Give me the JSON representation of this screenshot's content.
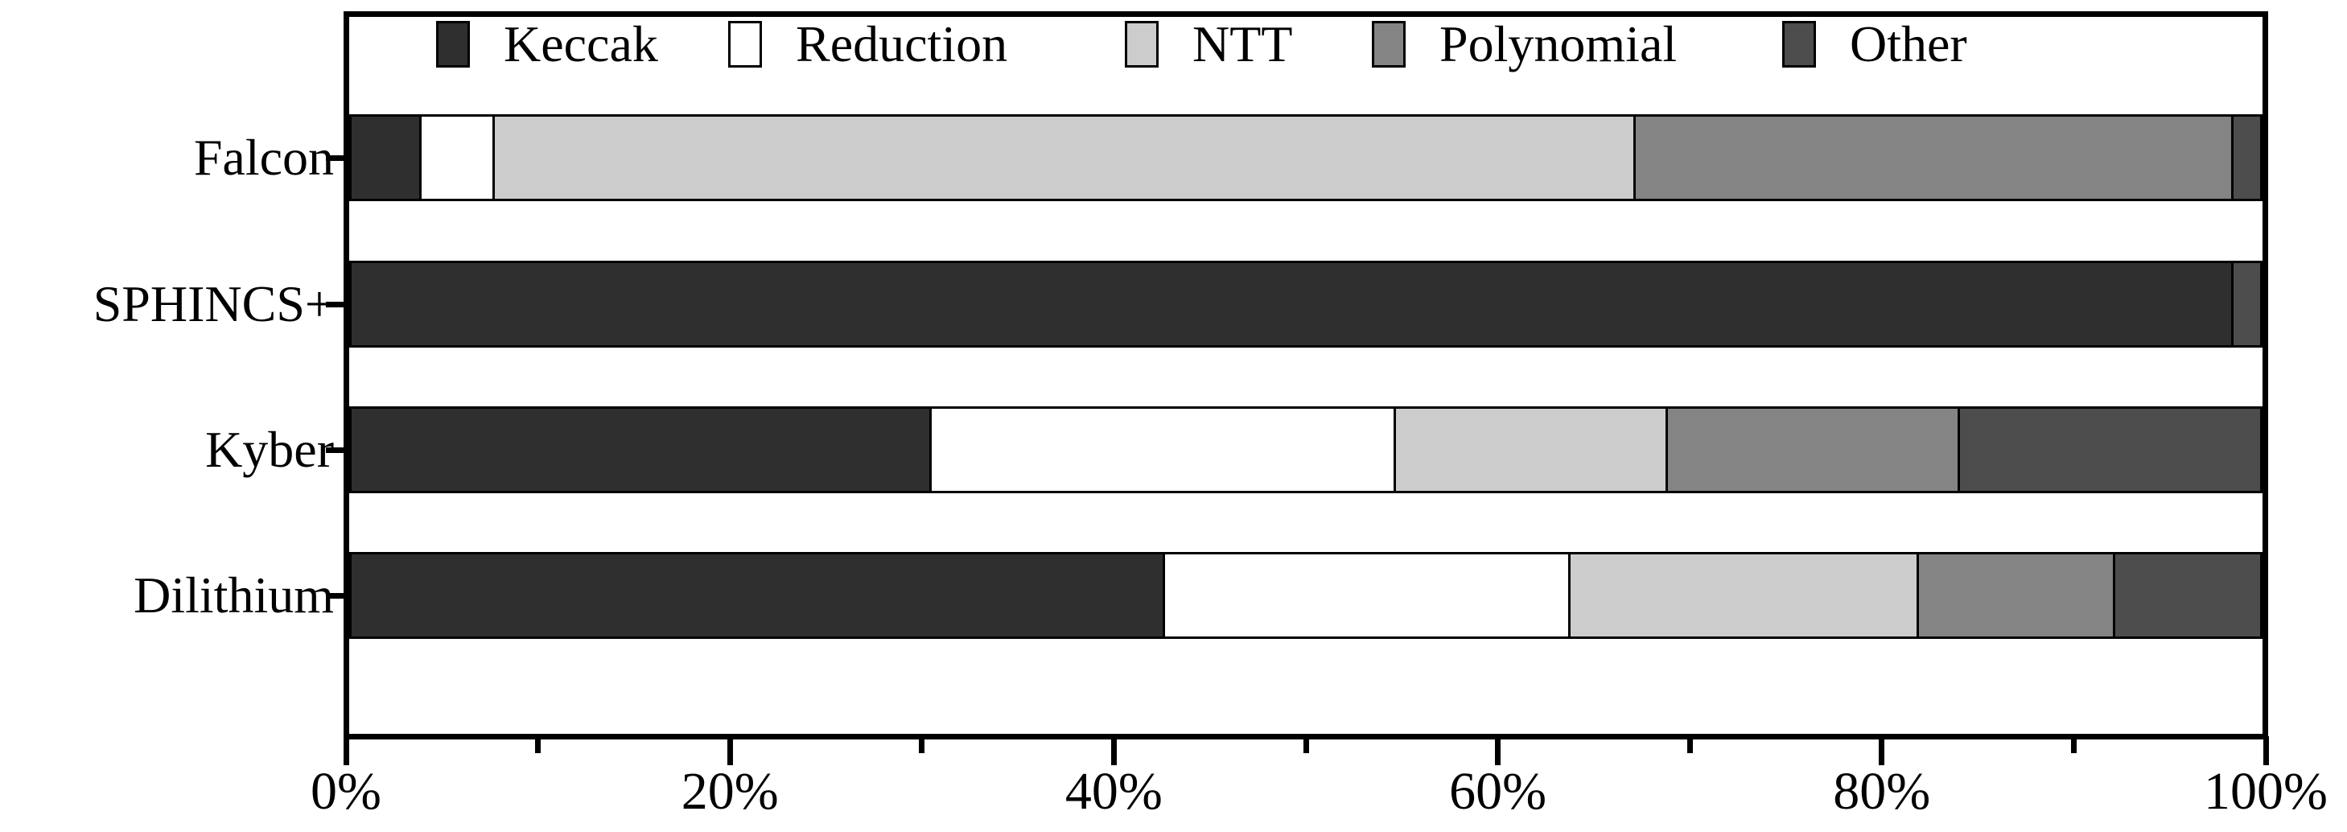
{
  "chart_data": {
    "type": "bar",
    "orientation": "horizontal",
    "stacked": true,
    "title": "",
    "xlabel": "",
    "ylabel": "",
    "xlim": [
      0,
      100
    ],
    "x_tick_labels": [
      "0%",
      "20%",
      "40%",
      "60%",
      "80%",
      "100%"
    ],
    "x_major_ticks": [
      0,
      20,
      40,
      60,
      80,
      100
    ],
    "x_minor_ticks": [
      10,
      30,
      50,
      70,
      90
    ],
    "grid": false,
    "legend_position": "top-inside",
    "categories": [
      "Falcon",
      "SPHINCS+",
      "Kyber",
      "Dilithium"
    ],
    "series": [
      {
        "name": "Keccak",
        "color": "#2f2f2f",
        "values": [
          3.7,
          98.6,
          30.5,
          42.8
        ]
      },
      {
        "name": "Reduction",
        "color": "#ffffff",
        "values": [
          3.7,
          0,
          24.3,
          21.2
        ]
      },
      {
        "name": "NTT",
        "color": "#cccccc",
        "values": [
          59.9,
          0,
          14.2,
          18.2
        ]
      },
      {
        "name": "Polynomial",
        "color": "#848484",
        "values": [
          31.3,
          0,
          15.2,
          10.2
        ]
      },
      {
        "name": "Other",
        "color": "#4d4d4d",
        "values": [
          1.4,
          1.4,
          15.8,
          7.6
        ]
      }
    ],
    "colors": {
      "axis": "#000000",
      "background": "#ffffff",
      "text": "#000000"
    }
  }
}
